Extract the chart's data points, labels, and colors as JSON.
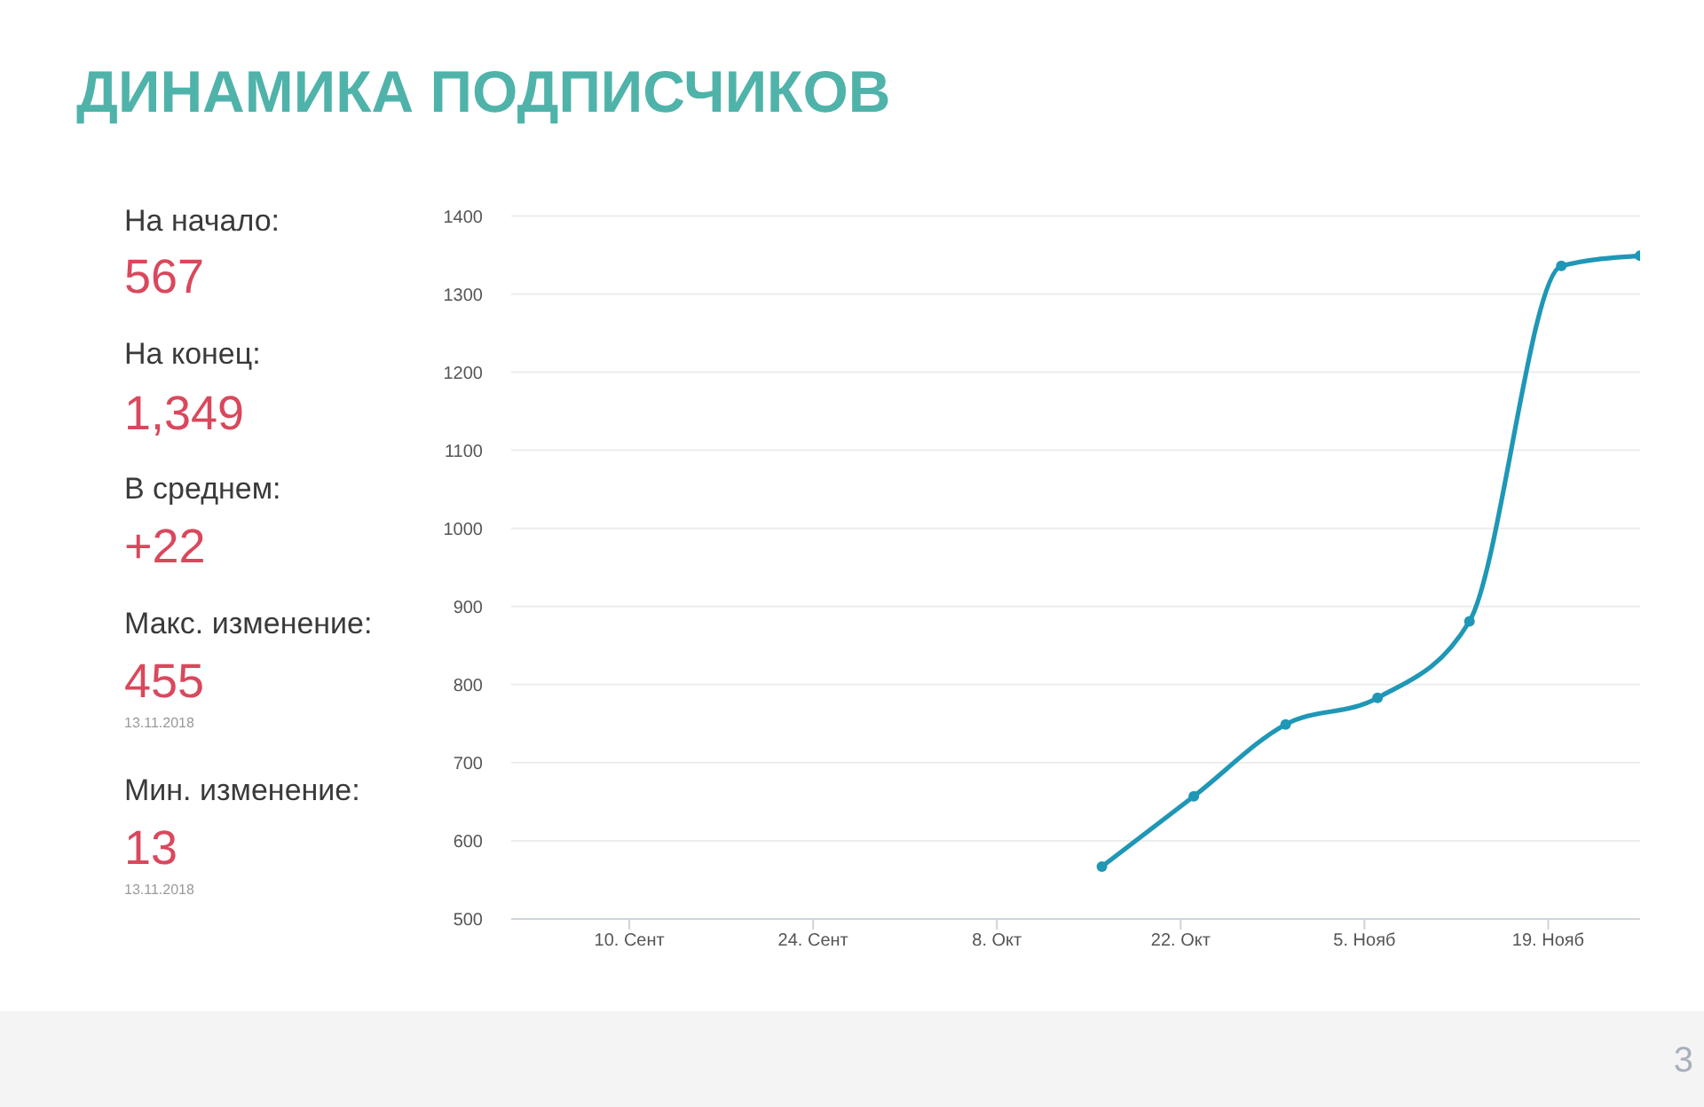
{
  "chart_data": {
    "type": "line",
    "title": "ДИНАМИКА ПОДПИСЧИКОВ",
    "x": [
      "2018-10-16",
      "2018-10-23",
      "2018-10-30",
      "2018-11-06",
      "2018-11-13",
      "2018-11-20",
      "2018-11-26"
    ],
    "series": [
      {
        "color": "#1f97b6",
        "values": [
          567,
          657,
          749,
          783,
          881,
          1336,
          1349
        ]
      }
    ],
    "xlim": [
      "2018-09-01",
      "2018-11-26"
    ],
    "xticks": [
      {
        "value": "2018-09-10",
        "label": "10. Сент"
      },
      {
        "value": "2018-09-24",
        "label": "24. Сент"
      },
      {
        "value": "2018-10-08",
        "label": "8. Окт"
      },
      {
        "value": "2018-10-22",
        "label": "22. Окт"
      },
      {
        "value": "2018-11-05",
        "label": "5. Нояб"
      },
      {
        "value": "2018-11-19",
        "label": "19. Нояб"
      }
    ],
    "ylim": [
      500,
      1400
    ],
    "yticks": [
      500,
      600,
      700,
      800,
      900,
      1000,
      1100,
      1200,
      1300,
      1400
    ],
    "grid": "y",
    "marker": "circle",
    "line_style": "solid",
    "annotations": [
      "На начало:",
      "567",
      "На конец:",
      "1,349",
      "В среднем:",
      "+22",
      "Макс. изменение:",
      "455",
      "13.11.2018",
      "Мин. изменение:",
      "13",
      "13.11.2018",
      "3"
    ]
  }
}
